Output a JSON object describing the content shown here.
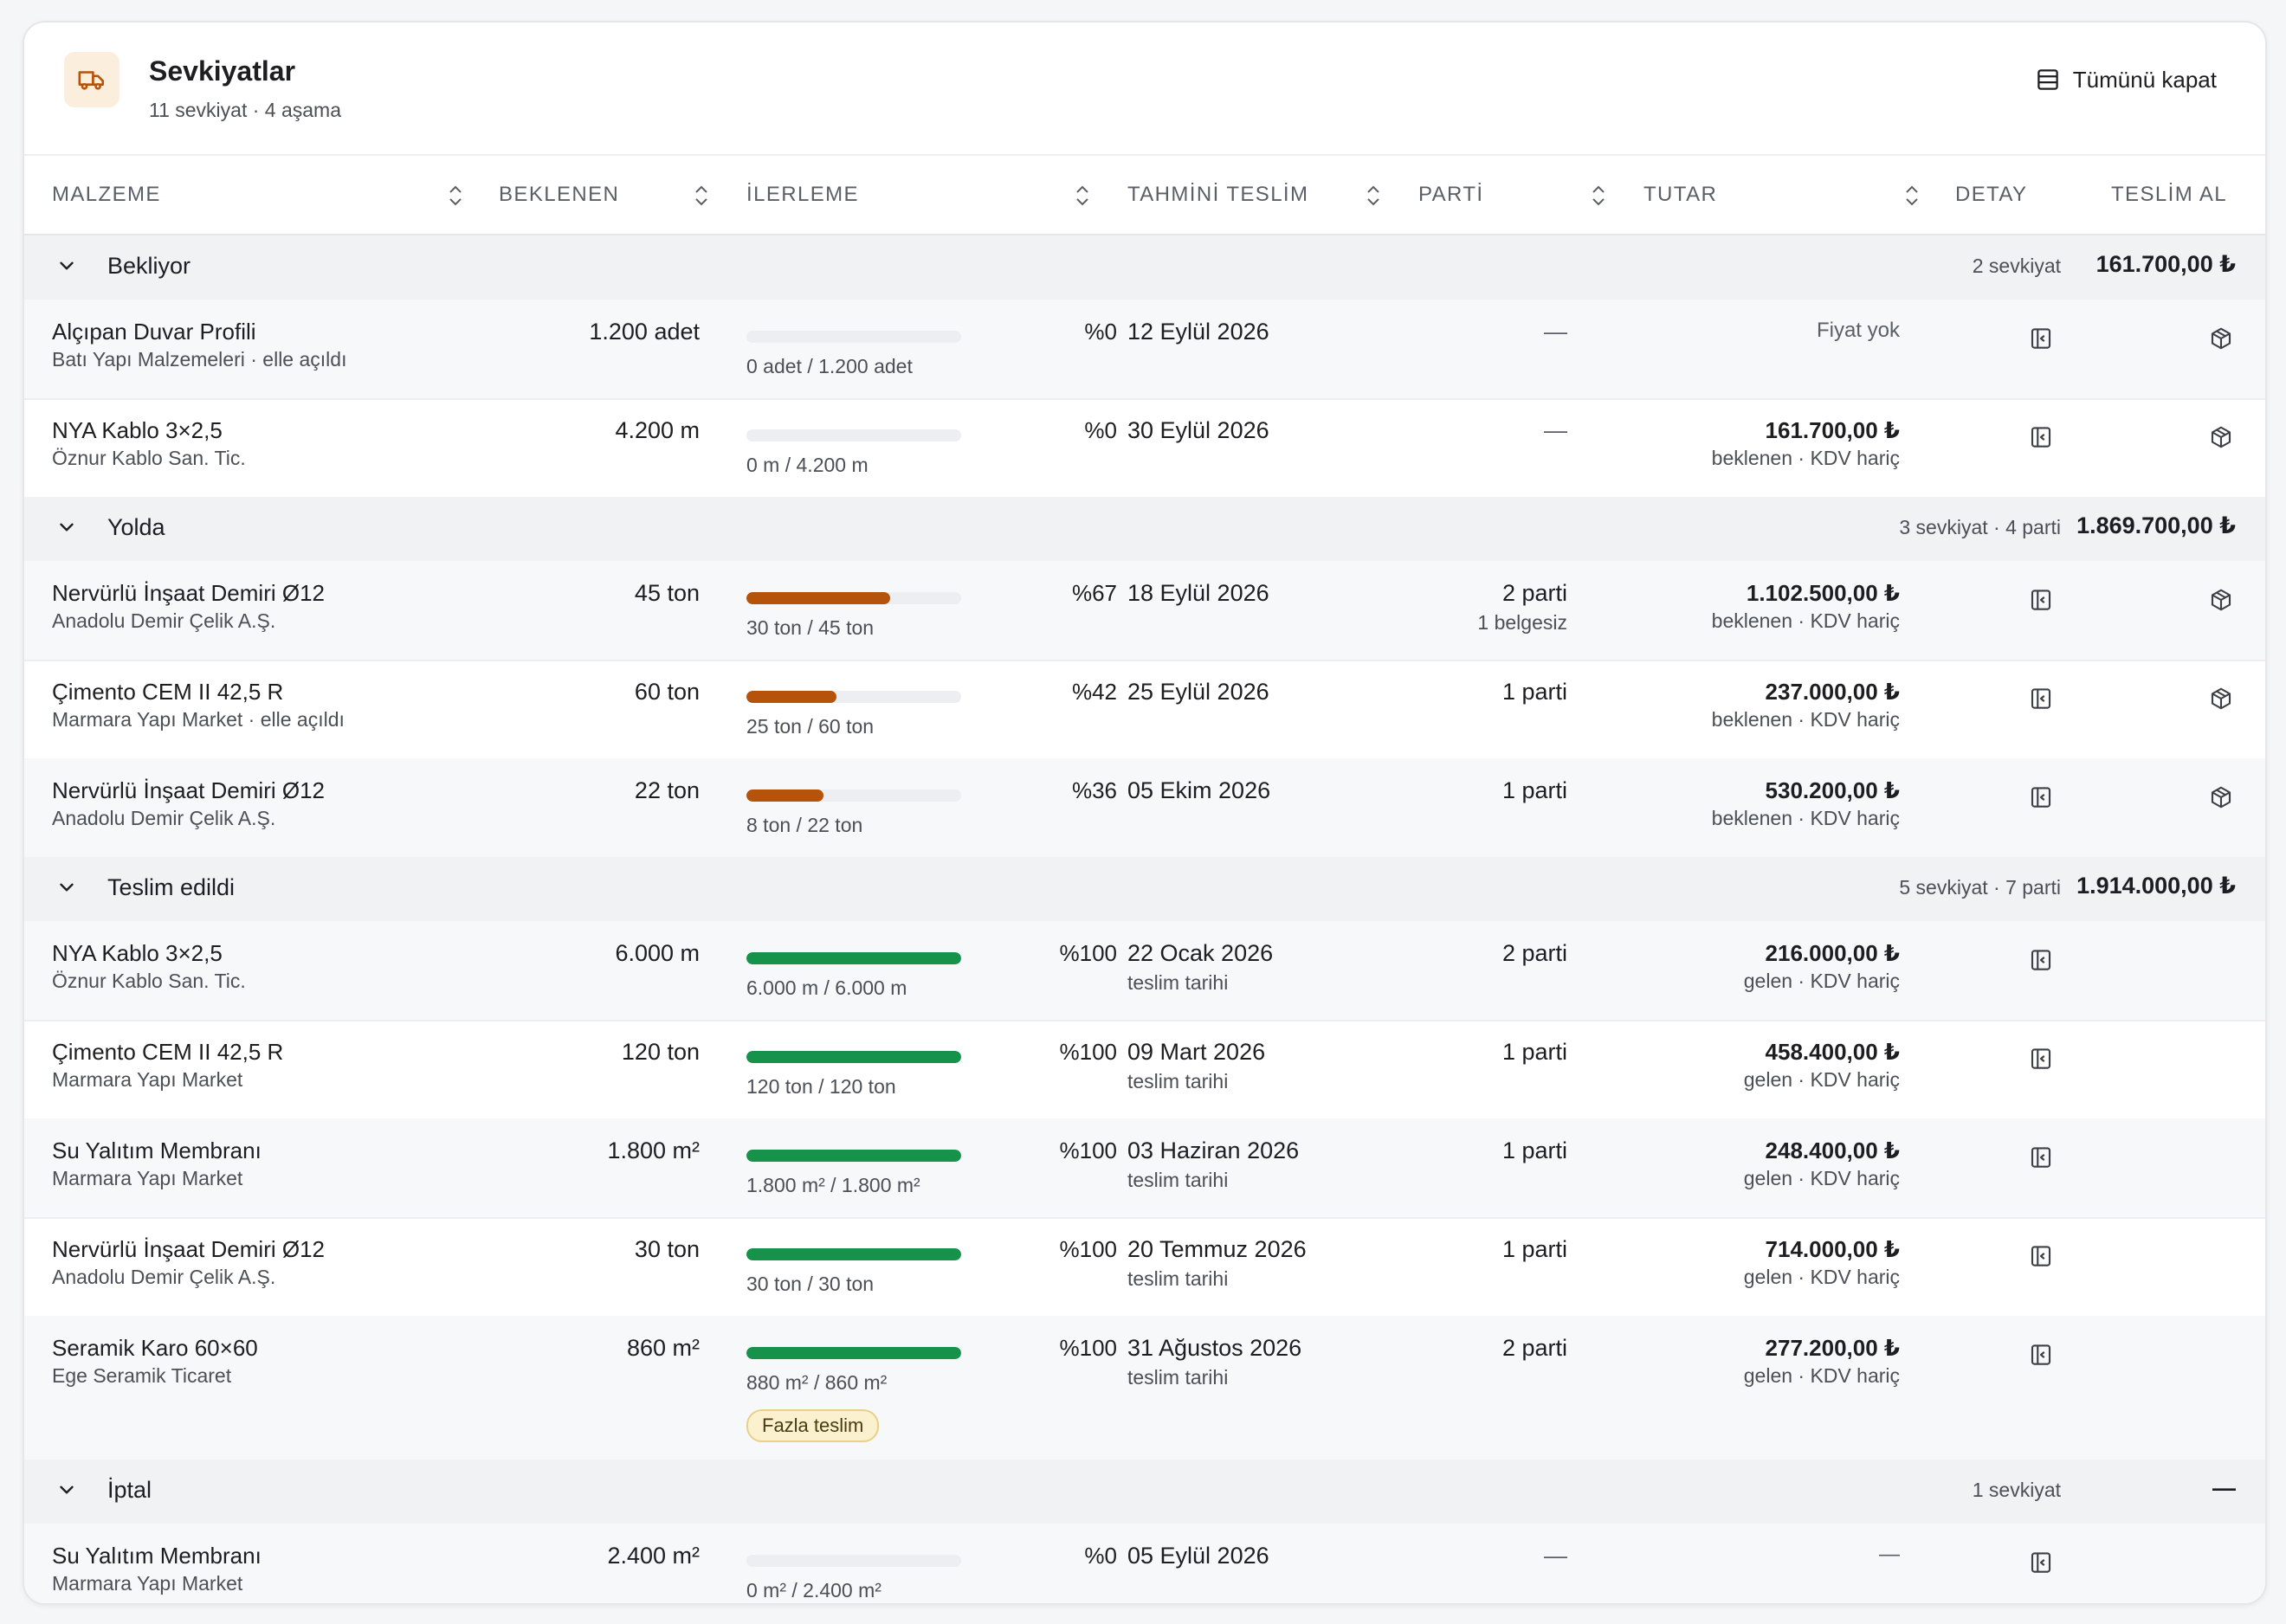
{
  "header": {
    "title": "Sevkiyatlar",
    "subtitle": "11 sevkiyat · 4 aşama",
    "collapse_label": "Tümünü kapat",
    "icon": "truck-icon"
  },
  "columns": {
    "material": "MALZEME",
    "expected": "BEKLENEN",
    "progress": "İLERLEME",
    "eta": "TAHMİNİ TESLİM",
    "batch": "PARTİ",
    "amount": "TUTAR",
    "detail": "DETAY",
    "receive": "TESLİM AL"
  },
  "colors": {
    "progress_in_transit": "#b45309",
    "progress_delivered": "#16924a",
    "track": "#eceef1"
  },
  "groups": [
    {
      "title": "Bekliyor",
      "meta": "2 sevkiyat",
      "total": "161.700,00 ₺",
      "rows": [
        {
          "name": "Alçıpan Duvar Profili",
          "supplier": "Batı Yapı Malzemeleri · elle açıldı",
          "expected": "1.200 adet",
          "progress": 0,
          "pct": "%0",
          "qty": "0 adet / 1.200 adet",
          "date": "12 Eylül 2026",
          "date_sub": "",
          "batch": "—",
          "batch_sub": "",
          "amount": "Fiyat yok",
          "amount_sub": ""
        },
        {
          "name": "NYA Kablo 3×2,5",
          "supplier": "Öznur Kablo San. Tic.",
          "expected": "4.200 m",
          "progress": 0,
          "pct": "%0",
          "qty": "0 m / 4.200 m",
          "date": "30 Eylül 2026",
          "date_sub": "",
          "batch": "—",
          "batch_sub": "",
          "amount": "161.700,00 ₺",
          "amount_sub": "beklenen · KDV hariç"
        }
      ]
    },
    {
      "title": "Yolda",
      "meta": "3 sevkiyat · 4 parti",
      "total": "1.869.700,00 ₺",
      "rows": [
        {
          "name": "Nervürlü İnşaat Demiri Ø12",
          "supplier": "Anadolu Demir Çelik A.Ş.",
          "expected": "45 ton",
          "progress": 0.67,
          "pct": "%67",
          "qty": "30 ton / 45 ton",
          "date": "18 Eylül 2026",
          "date_sub": "",
          "batch": "2 parti",
          "batch_sub": "1 belgesiz",
          "amount": "1.102.500,00 ₺",
          "amount_sub": "beklenen · KDV hariç"
        },
        {
          "name": "Çimento CEM II 42,5 R",
          "supplier": "Marmara Yapı Market · elle açıldı",
          "expected": "60 ton",
          "progress": 0.42,
          "pct": "%42",
          "qty": "25 ton / 60 ton",
          "date": "25 Eylül 2026",
          "date_sub": "",
          "batch": "1 parti",
          "batch_sub": "",
          "amount": "237.000,00 ₺",
          "amount_sub": "beklenen · KDV hariç"
        },
        {
          "name": "Nervürlü İnşaat Demiri Ø12",
          "supplier": "Anadolu Demir Çelik A.Ş.",
          "expected": "22 ton",
          "progress": 0.36,
          "pct": "%36",
          "qty": "8 ton / 22 ton",
          "date": "05 Ekim 2026",
          "date_sub": "",
          "batch": "1 parti",
          "batch_sub": "",
          "amount": "530.200,00 ₺",
          "amount_sub": "beklenen · KDV hariç"
        }
      ]
    },
    {
      "title": "Teslim edildi",
      "meta": "5 sevkiyat · 7 parti",
      "total": "1.914.000,00 ₺",
      "rows": [
        {
          "name": "NYA Kablo 3×2,5",
          "supplier": "Öznur Kablo San. Tic.",
          "expected": "6.000 m",
          "progress": 1,
          "pct": "%100",
          "qty": "6.000 m / 6.000 m",
          "date": "22 Ocak 2026",
          "date_sub": "teslim tarihi",
          "batch": "2 parti",
          "batch_sub": "",
          "amount": "216.000,00 ₺",
          "amount_sub": "gelen · KDV hariç"
        },
        {
          "name": "Çimento CEM II 42,5 R",
          "supplier": "Marmara Yapı Market",
          "expected": "120 ton",
          "progress": 1,
          "pct": "%100",
          "qty": "120 ton / 120 ton",
          "date": "09 Mart 2026",
          "date_sub": "teslim tarihi",
          "batch": "1 parti",
          "batch_sub": "",
          "amount": "458.400,00 ₺",
          "amount_sub": "gelen · KDV hariç"
        },
        {
          "name": "Su Yalıtım Membranı",
          "supplier": "Marmara Yapı Market",
          "expected": "1.800 m²",
          "progress": 1,
          "pct": "%100",
          "qty": "1.800 m² / 1.800 m²",
          "date": "03 Haziran 2026",
          "date_sub": "teslim tarihi",
          "batch": "1 parti",
          "batch_sub": "",
          "amount": "248.400,00 ₺",
          "amount_sub": "gelen · KDV hariç"
        },
        {
          "name": "Nervürlü İnşaat Demiri Ø12",
          "supplier": "Anadolu Demir Çelik A.Ş.",
          "expected": "30 ton",
          "progress": 1,
          "pct": "%100",
          "qty": "30 ton / 30 ton",
          "date": "20 Temmuz 2026",
          "date_sub": "teslim tarihi",
          "batch": "1 parti",
          "batch_sub": "",
          "amount": "714.000,00 ₺",
          "amount_sub": "gelen · KDV hariç"
        },
        {
          "name": "Seramik Karo 60×60",
          "supplier": "Ege Seramik Ticaret",
          "expected": "860 m²",
          "progress": 1,
          "pct": "%100",
          "qty": "880 m² / 860 m²",
          "badge": "Fazla teslim",
          "date": "31 Ağustos 2026",
          "date_sub": "teslim tarihi",
          "batch": "2 parti",
          "batch_sub": "",
          "amount": "277.200,00 ₺",
          "amount_sub": "gelen · KDV hariç"
        }
      ]
    },
    {
      "title": "İptal",
      "meta": "1 sevkiyat",
      "total": "—",
      "rows": [
        {
          "name": "Su Yalıtım Membranı",
          "supplier": "Marmara Yapı Market",
          "expected": "2.400 m²",
          "progress": 0,
          "pct": "%0",
          "qty": "0 m² / 2.400 m²",
          "date": "05 Eylül 2026",
          "date_sub": "",
          "batch": "—",
          "batch_sub": "",
          "amount": "—",
          "amount_sub": ""
        }
      ]
    }
  ]
}
